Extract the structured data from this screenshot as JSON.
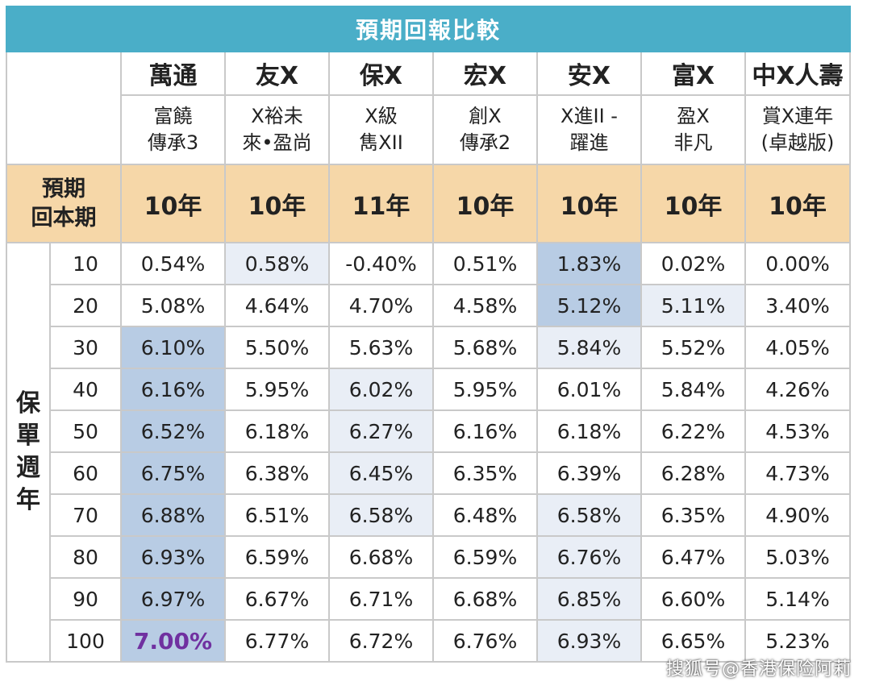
{
  "title": "預期回報比較",
  "companies": [
    "萬通",
    "友X",
    "保X",
    "宏X",
    "安X",
    "富X",
    "中X人壽"
  ],
  "products": [
    [
      "富饒",
      "傳承3"
    ],
    [
      "X裕未",
      "來•盈尚"
    ],
    [
      "X級",
      "雋XII"
    ],
    [
      "創X",
      "傳承2"
    ],
    [
      "X進II -",
      "躍進"
    ],
    [
      "盈X",
      "非凡"
    ],
    [
      "賞X連年",
      "(卓越版)"
    ]
  ],
  "payback_label": [
    "預期",
    "回本期"
  ],
  "payback": [
    "10年",
    "10年",
    "11年",
    "10年",
    "10年",
    "10年",
    "10年"
  ],
  "side_label": [
    "保",
    "單",
    "週",
    "年"
  ],
  "years": [
    "10",
    "20",
    "30",
    "40",
    "50",
    "60",
    "70",
    "80",
    "90",
    "100"
  ],
  "rows": [
    [
      "0.54%",
      "0.58%",
      "-0.40%",
      "0.51%",
      "1.83%",
      "0.02%",
      "0.00%"
    ],
    [
      "5.08%",
      "4.64%",
      "4.70%",
      "4.58%",
      "5.12%",
      "5.11%",
      "3.40%"
    ],
    [
      "6.10%",
      "5.50%",
      "5.63%",
      "5.68%",
      "5.84%",
      "5.52%",
      "4.05%"
    ],
    [
      "6.16%",
      "5.95%",
      "6.02%",
      "5.95%",
      "6.01%",
      "5.84%",
      "4.26%"
    ],
    [
      "6.52%",
      "6.18%",
      "6.27%",
      "6.16%",
      "6.18%",
      "6.22%",
      "4.53%"
    ],
    [
      "6.75%",
      "6.38%",
      "6.45%",
      "6.35%",
      "6.39%",
      "6.28%",
      "4.73%"
    ],
    [
      "6.88%",
      "6.51%",
      "6.58%",
      "6.48%",
      "6.58%",
      "6.35%",
      "4.90%"
    ],
    [
      "6.93%",
      "6.59%",
      "6.68%",
      "6.59%",
      "6.76%",
      "6.47%",
      "5.03%"
    ],
    [
      "6.97%",
      "6.67%",
      "6.71%",
      "6.68%",
      "6.85%",
      "6.60%",
      "5.14%"
    ],
    [
      "7.00%",
      "6.77%",
      "6.72%",
      "6.76%",
      "6.93%",
      "6.65%",
      "5.23%"
    ]
  ],
  "highlight_map": [
    [
      "",
      "L",
      "",
      "",
      "D",
      "",
      ""
    ],
    [
      "",
      "",
      "",
      "",
      "D",
      "L",
      ""
    ],
    [
      "D",
      "",
      "",
      "",
      "L",
      "",
      ""
    ],
    [
      "D",
      "",
      "L",
      "",
      "",
      "",
      ""
    ],
    [
      "D",
      "",
      "L",
      "",
      "",
      "",
      ""
    ],
    [
      "D",
      "",
      "L",
      "",
      "",
      "",
      ""
    ],
    [
      "D",
      "",
      "L",
      "",
      "L",
      "",
      ""
    ],
    [
      "D",
      "",
      "",
      "",
      "L",
      "",
      ""
    ],
    [
      "D",
      "",
      "",
      "",
      "L",
      "",
      ""
    ],
    [
      "D",
      "",
      "",
      "",
      "L",
      "",
      ""
    ]
  ],
  "best_value": "7.00%",
  "colors": {
    "title_bg": "#4aaec8",
    "payback_bg": "#f6d7a8",
    "highlight_dark": "#b8cce4",
    "highlight_light": "#e9eef6",
    "best_text": "#7030a0"
  },
  "watermark": "搜狐号@香港保险阿莉"
}
